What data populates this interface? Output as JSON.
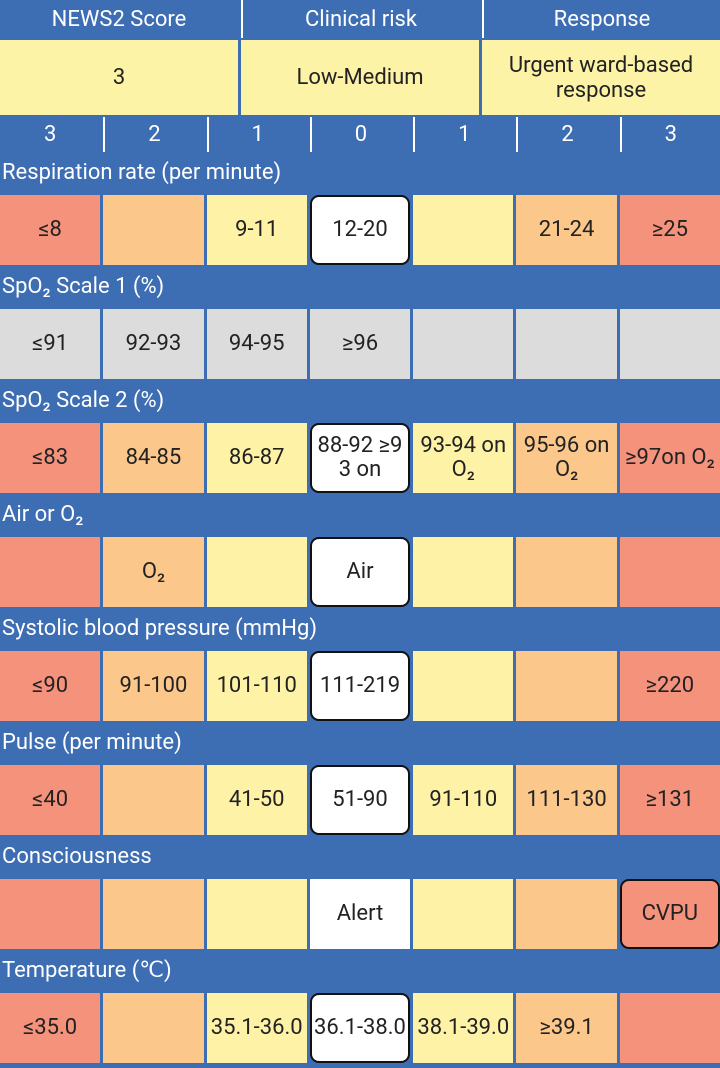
{
  "header": {
    "columns": [
      "NEWS2 Score",
      "Clinical risk",
      "Response"
    ],
    "values": [
      "3",
      "Low-Medium",
      "Urgent ward-based response"
    ]
  },
  "scores": [
    "3",
    "2",
    "1",
    "0",
    "1",
    "2",
    "3"
  ],
  "sections": [
    {
      "label": "Respiration rate (per minute)",
      "cells": [
        "≤8",
        null,
        "9-11",
        "12-20",
        null,
        "21-24",
        "≥25"
      ]
    },
    {
      "label": "SpO₂ Scale 1 (%)",
      "cells": [
        "≤91",
        "92-93",
        "94-95",
        "≥96",
        null,
        null,
        null
      ]
    },
    {
      "label": "SpO₂ Scale 2 (%)",
      "cells": [
        "≤83",
        "84-85",
        "86-87",
        "88-92 ≥93 on",
        "93-94 on O₂",
        "95-96 on O₂",
        "≥97on O₂"
      ]
    },
    {
      "label": "Air or O₂",
      "cells": [
        null,
        "O₂",
        null,
        "Air",
        null,
        null,
        null
      ]
    },
    {
      "label": "Systolic blood pressure (mmHg)",
      "cells": [
        "≤90",
        "91-100",
        "101-110",
        "111-219",
        null,
        null,
        "≥220"
      ]
    },
    {
      "label": "Pulse (per minute)",
      "cells": [
        "≤40",
        null,
        "41-50",
        "51-90",
        "91-110",
        "111-130",
        "≥131"
      ]
    },
    {
      "label": "Consciousness",
      "cells": [
        null,
        null,
        null,
        "Alert",
        null,
        null,
        "CVPU"
      ]
    },
    {
      "label": "Temperature (℃)",
      "cells": [
        "≤35.0",
        null,
        "35.1-36.0",
        "36.1-38.0",
        "38.1-39.0",
        "≥39.1",
        null
      ]
    }
  ]
}
